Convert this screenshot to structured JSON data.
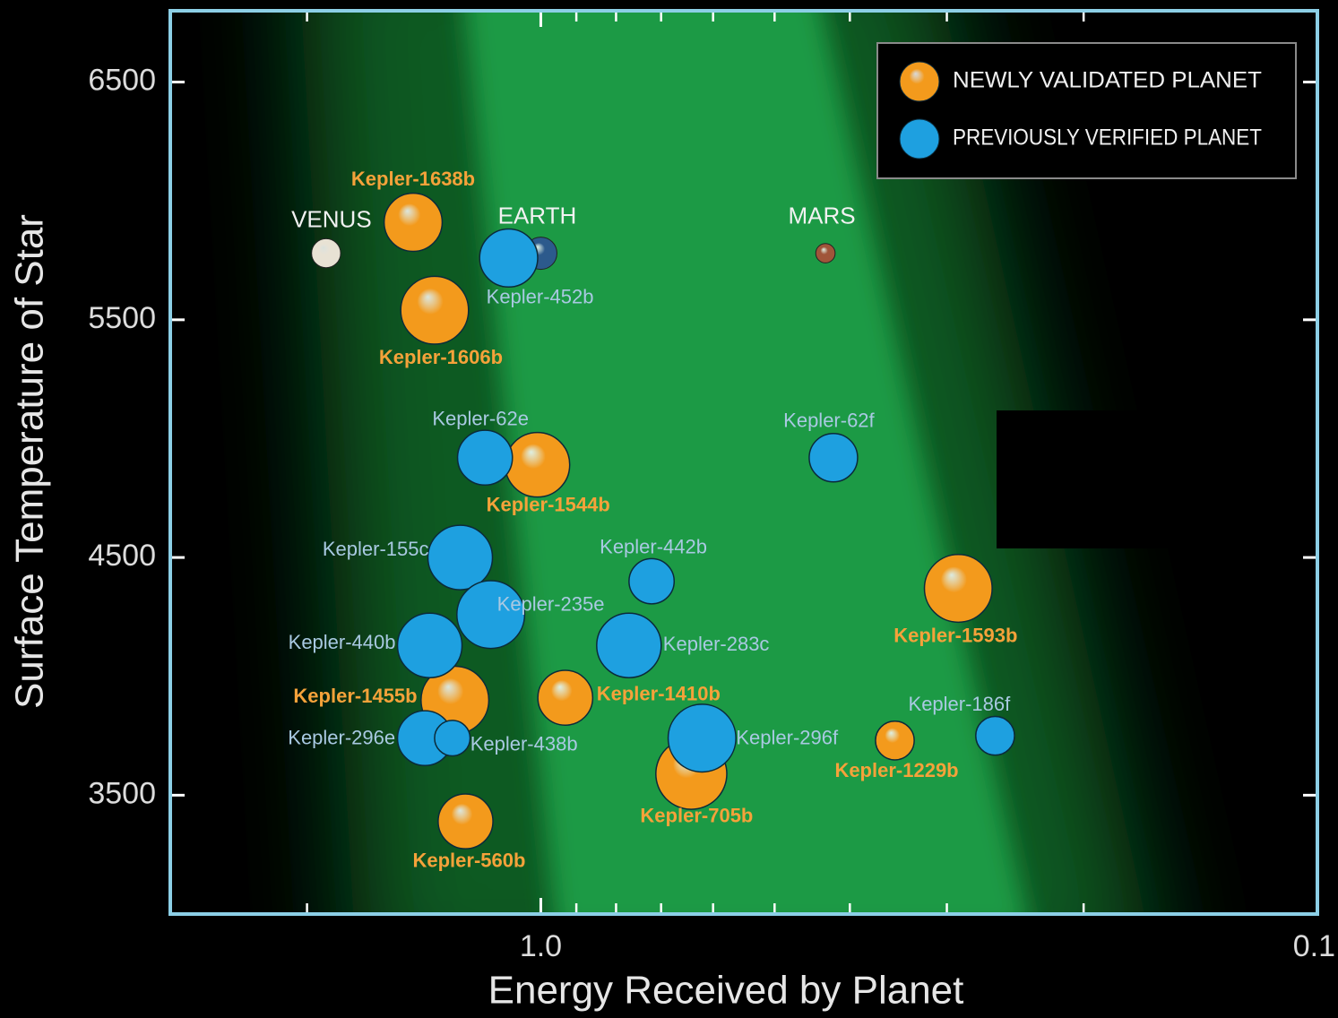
{
  "chart_data": {
    "type": "bubble",
    "x_label": "Energy Received by Planet",
    "y_label": "Surface Temperature of Star",
    "xscale": "log",
    "xlim": [
      3,
      0.1
    ],
    "xticks": [
      {
        "value": 1,
        "label": "1.0"
      },
      0.1
    ],
    "xminor_ticks": [
      2,
      0.9,
      0.8,
      0.7,
      0.6,
      0.5,
      0.4,
      0.3,
      0.2
    ],
    "ylim": [
      3000,
      6800
    ],
    "yticks": [
      3500,
      4500,
      5500,
      6500
    ],
    "legend_position": "upper right",
    "series": [
      {
        "name": "NEWLY VALIDATED PLANET",
        "color": "#f39a1c",
        "label_color": "#f5a23a",
        "labels": [
          "Kepler-1638b",
          "Kepler-1606b",
          "Kepler-1544b",
          "Kepler-1593b",
          "Kepler-1455b",
          "Kepler-1410b",
          "Kepler-1229b",
          "Kepler-705b",
          "Kepler-560b"
        ],
        "x": [
          1.46,
          1.37,
          1.01,
          0.29,
          1.29,
          0.93,
          0.35,
          0.64,
          1.25
        ],
        "y": [
          5910,
          5540,
          4890,
          4370,
          3900,
          3910,
          3730,
          3590,
          3390
        ],
        "sizes": [
          1.8,
          2.1,
          2.0,
          2.1,
          2.1,
          1.7,
          1.2,
          2.2,
          1.7
        ]
      },
      {
        "name": "PREVIOUSLY VERIFIED PLANET",
        "color": "#1ea0e0",
        "label_color": "#a9c9e2",
        "labels": [
          "Kepler-452b",
          "Kepler-62e",
          "Kepler-62f",
          "Kepler-155c",
          "Kepler-442b",
          "Kepler-235e",
          "Kepler-440b",
          "Kepler-283c",
          "Kepler-296e",
          "Kepler-438b",
          "Kepler-296f",
          "Kepler-186f"
        ],
        "x": [
          1.1,
          1.18,
          0.42,
          1.27,
          0.72,
          1.16,
          1.39,
          0.77,
          1.41,
          1.3,
          0.62,
          0.26
        ],
        "y": [
          5760,
          4920,
          4920,
          4500,
          4400,
          4260,
          4130,
          4130,
          3740,
          3740,
          3740,
          3750
        ],
        "sizes": [
          1.8,
          1.7,
          1.5,
          2.0,
          1.4,
          2.1,
          2.0,
          2.0,
          1.7,
          1.1,
          2.1,
          1.2
        ]
      }
    ],
    "solar_system": {
      "labels": [
        "VENUS",
        "EARTH",
        "MARS"
      ],
      "colors": [
        "#e8e2d4",
        "#2c5a8c",
        "#a0553a"
      ],
      "x": [
        1.89,
        1.0,
        0.43
      ],
      "y": [
        5780,
        5780,
        5780
      ],
      "sizes": [
        0.9,
        1.0,
        0.6
      ]
    }
  }
}
